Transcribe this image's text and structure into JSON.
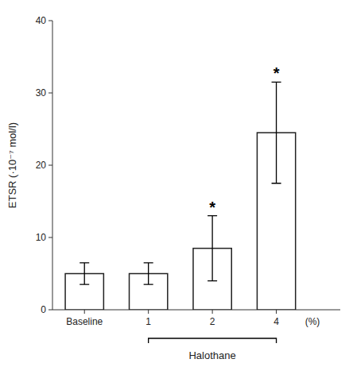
{
  "chart_data": {
    "type": "bar",
    "categories": [
      "Baseline",
      "1",
      "2",
      "4"
    ],
    "values": [
      5.0,
      5.0,
      8.5,
      24.5
    ],
    "errors": [
      1.5,
      1.5,
      4.5,
      7.0
    ],
    "color": "#ffffff",
    "ylim": [
      0,
      40
    ],
    "yticks": [
      0,
      10,
      20,
      30,
      40
    ],
    "ylabel": "ETSR (·10⁻⁷ mol/l)",
    "xlabel": "(%)",
    "annotations": [
      {
        "text": "*",
        "category": "2"
      },
      {
        "text": "*",
        "category": "4"
      },
      {
        "text": "Halothane",
        "from": "1",
        "to": "4"
      }
    ]
  }
}
